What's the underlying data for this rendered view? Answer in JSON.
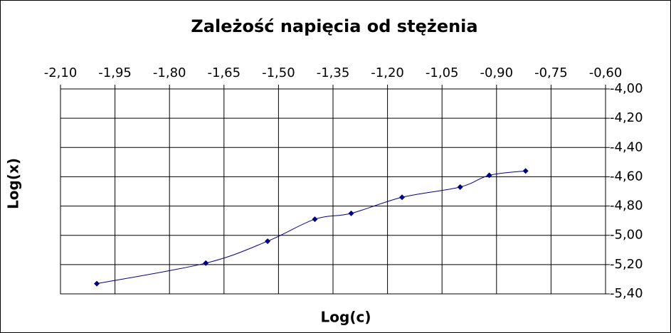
{
  "chart_data": {
    "type": "line",
    "title": "Zależość napięcia od stężenia",
    "x_label": "Log(c)",
    "y_label": "Log(x)",
    "x": [
      -2.0,
      -1.7,
      -1.53,
      -1.4,
      -1.3,
      -1.16,
      -1.0,
      -0.92,
      -0.82
    ],
    "series": [
      {
        "color": "#000080",
        "values": [
          -5.33,
          -5.19,
          -5.04,
          -4.89,
          -4.85,
          -4.74,
          -4.67,
          -4.59,
          -4.56
        ]
      }
    ],
    "xlim": [
      -2.1,
      -0.6
    ],
    "xticks": [
      {
        "value": -2.1,
        "label": "-2,10"
      },
      {
        "value": -1.95,
        "label": "-1,95"
      },
      {
        "value": -1.8,
        "label": "-1,80"
      },
      {
        "value": -1.65,
        "label": "-1,65"
      },
      {
        "value": -1.5,
        "label": "-1,50"
      },
      {
        "value": -1.35,
        "label": "-1,35"
      },
      {
        "value": -1.2,
        "label": "-1,20"
      },
      {
        "value": -1.05,
        "label": "-1,05"
      },
      {
        "value": -0.9,
        "label": "-0,90"
      },
      {
        "value": -0.75,
        "label": "-0,75"
      },
      {
        "value": -0.6,
        "label": "-0,60"
      }
    ],
    "ylim": [
      -5.4,
      -4.0
    ],
    "yticks": [
      {
        "value": -4.0,
        "label": "-4,00"
      },
      {
        "value": -4.2,
        "label": "-4,20"
      },
      {
        "value": -4.4,
        "label": "-4,40"
      },
      {
        "value": -4.6,
        "label": "-4,60"
      },
      {
        "value": -4.8,
        "label": "-4,80"
      },
      {
        "value": -5.0,
        "label": "-5,00"
      },
      {
        "value": -5.2,
        "label": "-5,20"
      },
      {
        "value": -5.4,
        "label": "-5,40"
      }
    ],
    "grid": true,
    "x_axis_position": "top",
    "y_axis_position": "right"
  }
}
